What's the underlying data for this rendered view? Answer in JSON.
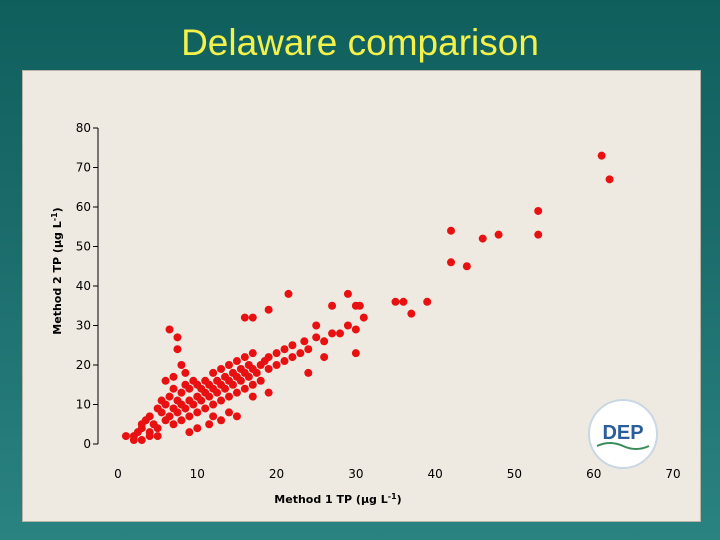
{
  "chart_data": {
    "type": "scatter",
    "title": "Delaware comparison",
    "xlabel": "Method 1 TP (µg L-1)",
    "ylabel": "Method 2 TP (µg L-1)",
    "xlim": [
      0,
      70
    ],
    "ylim": [
      0,
      80
    ],
    "x_ticks": [
      0,
      10,
      20,
      30,
      40,
      50,
      60,
      70
    ],
    "y_ticks": [
      0,
      10,
      20,
      30,
      40,
      50,
      60,
      70,
      80
    ],
    "grid": false,
    "marker_color": "#e81010",
    "points": [
      [
        1,
        2
      ],
      [
        2,
        2
      ],
      [
        2.5,
        3
      ],
      [
        3,
        4
      ],
      [
        3,
        5
      ],
      [
        3.5,
        6
      ],
      [
        4,
        3
      ],
      [
        4,
        7
      ],
      [
        4.5,
        5
      ],
      [
        5,
        4
      ],
      [
        5,
        9
      ],
      [
        5.5,
        8
      ],
      [
        5.5,
        11
      ],
      [
        6,
        6
      ],
      [
        6,
        10
      ],
      [
        6.5,
        7
      ],
      [
        6.5,
        12
      ],
      [
        7,
        5
      ],
      [
        7,
        9
      ],
      [
        7,
        14
      ],
      [
        7.5,
        8
      ],
      [
        7.5,
        11
      ],
      [
        8,
        6
      ],
      [
        8,
        10
      ],
      [
        8,
        13
      ],
      [
        8.5,
        9
      ],
      [
        8.5,
        15
      ],
      [
        9,
        7
      ],
      [
        9,
        11
      ],
      [
        9,
        14
      ],
      [
        9.5,
        10
      ],
      [
        9.5,
        16
      ],
      [
        10,
        8
      ],
      [
        10,
        12
      ],
      [
        10,
        15
      ],
      [
        10.5,
        11
      ],
      [
        10.5,
        14
      ],
      [
        11,
        9
      ],
      [
        11,
        13
      ],
      [
        11,
        16
      ],
      [
        11.5,
        12
      ],
      [
        11.5,
        15
      ],
      [
        12,
        10
      ],
      [
        12,
        14
      ],
      [
        12,
        18
      ],
      [
        12.5,
        13
      ],
      [
        12.5,
        16
      ],
      [
        13,
        11
      ],
      [
        13,
        15
      ],
      [
        13,
        19
      ],
      [
        13.5,
        14
      ],
      [
        13.5,
        17
      ],
      [
        14,
        12
      ],
      [
        14,
        16
      ],
      [
        14,
        20
      ],
      [
        14.5,
        15
      ],
      [
        14.5,
        18
      ],
      [
        15,
        13
      ],
      [
        15,
        17
      ],
      [
        15,
        21
      ],
      [
        15.5,
        16
      ],
      [
        15.5,
        19
      ],
      [
        16,
        14
      ],
      [
        16,
        18
      ],
      [
        16,
        22
      ],
      [
        16.5,
        17
      ],
      [
        16.5,
        20
      ],
      [
        17,
        15
      ],
      [
        17,
        19
      ],
      [
        17,
        23
      ],
      [
        17.5,
        18
      ],
      [
        18,
        20
      ],
      [
        18,
        16
      ],
      [
        18.5,
        21
      ],
      [
        19,
        19
      ],
      [
        19,
        22
      ],
      [
        20,
        20
      ],
      [
        20,
        23
      ],
      [
        21,
        21
      ],
      [
        21,
        24
      ],
      [
        22,
        22
      ],
      [
        22,
        25
      ],
      [
        23,
        23
      ],
      [
        23.5,
        26
      ],
      [
        24,
        24
      ],
      [
        25,
        27
      ],
      [
        26,
        26
      ],
      [
        27,
        28
      ],
      [
        28,
        28
      ],
      [
        6,
        16
      ],
      [
        7,
        17
      ],
      [
        8.5,
        18
      ],
      [
        9,
        3
      ],
      [
        10,
        4
      ],
      [
        11.5,
        5
      ],
      [
        13,
        6
      ],
      [
        15,
        7
      ],
      [
        6.5,
        29
      ],
      [
        7.5,
        27
      ],
      [
        7.5,
        24
      ],
      [
        8,
        20
      ],
      [
        16,
        32
      ],
      [
        17,
        32
      ],
      [
        19,
        34
      ],
      [
        21.5,
        38
      ],
      [
        27,
        35
      ],
      [
        29,
        38
      ],
      [
        30,
        35
      ],
      [
        30.5,
        35
      ],
      [
        31,
        32
      ],
      [
        30,
        29
      ],
      [
        35,
        36
      ],
      [
        36,
        36
      ],
      [
        37,
        33
      ],
      [
        39,
        36
      ],
      [
        42,
        54
      ],
      [
        42,
        46
      ],
      [
        44,
        45
      ],
      [
        46,
        52
      ],
      [
        48,
        53
      ],
      [
        53,
        59
      ],
      [
        53,
        53
      ],
      [
        61,
        73
      ],
      [
        62,
        67
      ],
      [
        30,
        23
      ],
      [
        29,
        30
      ],
      [
        25,
        30
      ],
      [
        3,
        1
      ],
      [
        2,
        1
      ],
      [
        4,
        2
      ],
      [
        5,
        2
      ],
      [
        12,
        7
      ],
      [
        14,
        8
      ],
      [
        17,
        12
      ],
      [
        19,
        13
      ],
      [
        24,
        18
      ],
      [
        26,
        22
      ]
    ]
  }
}
